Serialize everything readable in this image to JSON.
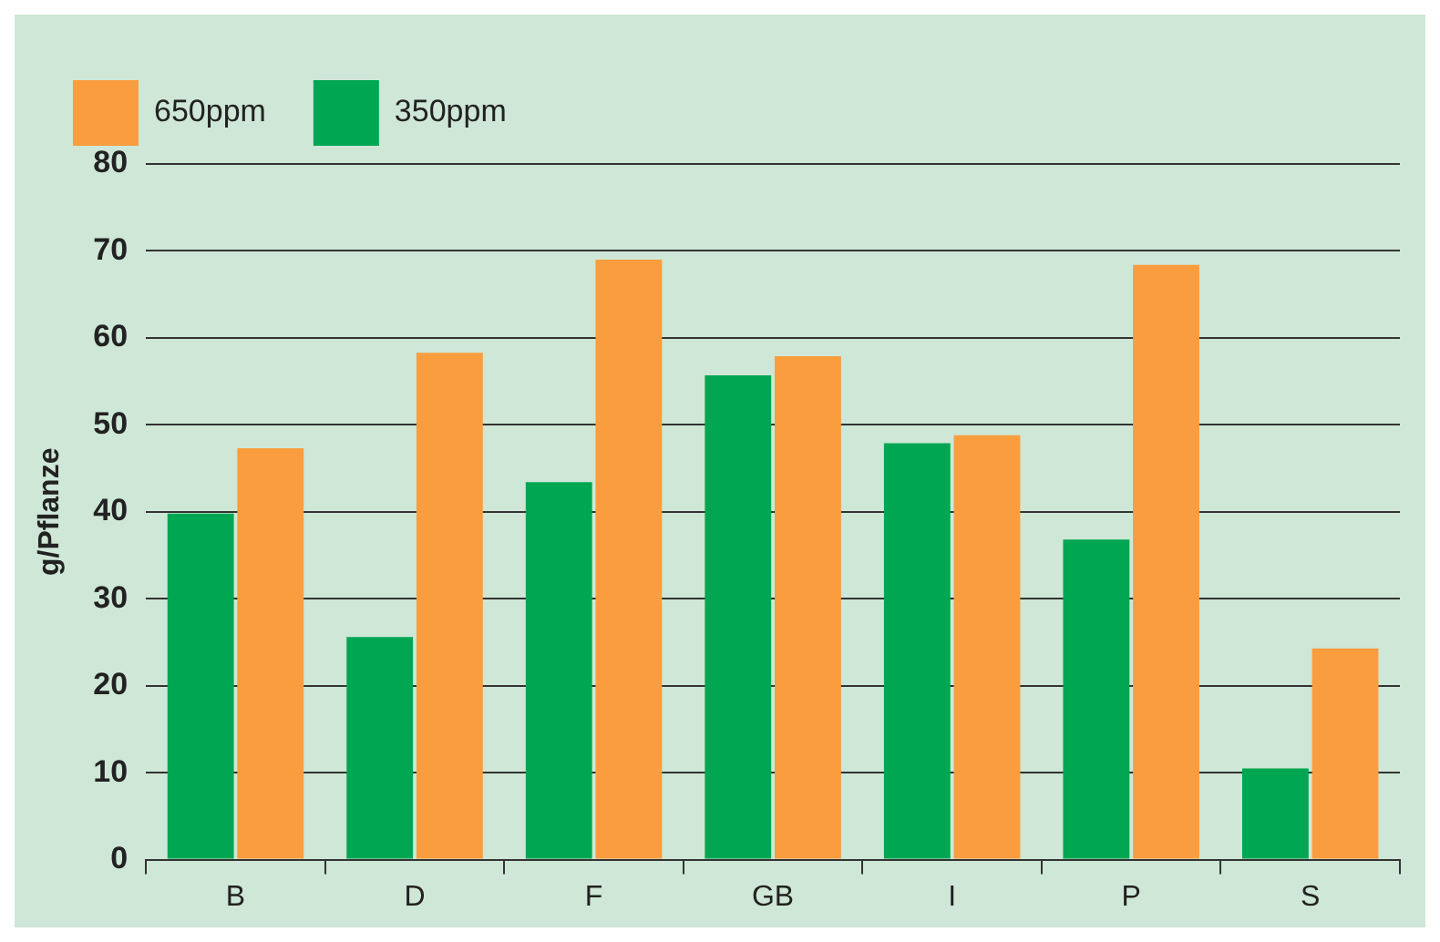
{
  "chart_data": {
    "type": "bar",
    "ylabel": "g/Pflanze",
    "categories": [
      "B",
      "D",
      "F",
      "GB",
      "I",
      "P",
      "S"
    ],
    "series": [
      {
        "name": "350ppm",
        "color": "#00a651",
        "values": [
          39.8,
          25.6,
          43.4,
          55.7,
          47.9,
          36.8,
          10.5
        ]
      },
      {
        "name": "650ppm",
        "color": "#f99d3e",
        "values": [
          47.3,
          58.3,
          69.0,
          57.9,
          48.8,
          68.4,
          24.3
        ]
      }
    ],
    "ylim": [
      0,
      80
    ],
    "yticks": [
      0,
      10,
      20,
      30,
      40,
      50,
      60,
      70,
      80
    ],
    "grid": "y",
    "legend": "top left"
  }
}
